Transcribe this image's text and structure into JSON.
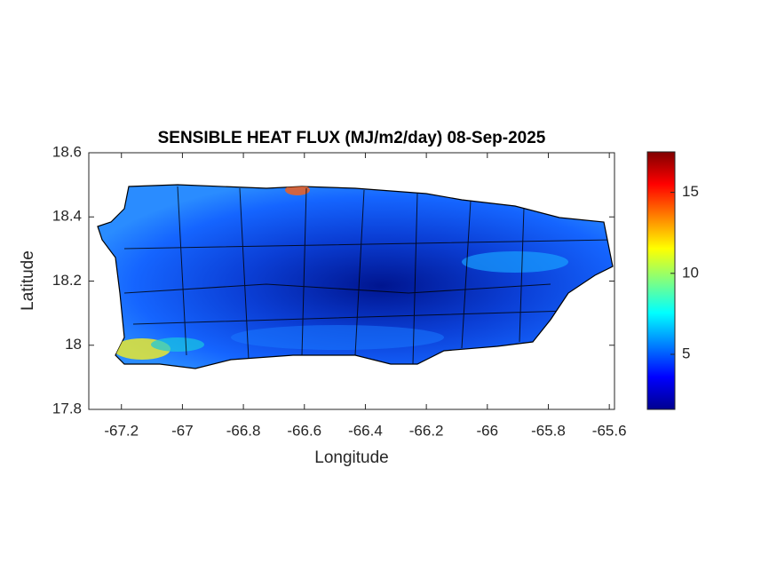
{
  "chart_data": {
    "type": "map",
    "title": "SENSIBLE HEAT FLUX (MJ/m2/day) 08-Sep-2025",
    "x_label": "Longitude",
    "y_label": "Latitude",
    "xlim": [
      -67.307,
      -65.583
    ],
    "xticks": [
      -67.2,
      -67,
      -66.8,
      -66.6,
      -66.4,
      -66.2,
      -66,
      -65.8,
      -65.6
    ],
    "ylim": [
      17.8,
      18.6
    ],
    "yticks": [
      17.8,
      18,
      18.2,
      18.4,
      18.6
    ],
    "colorbar": {
      "colormap": "jet",
      "clim": [
        1.6,
        17.5
      ],
      "ticks": [
        5,
        10,
        15
      ]
    }
  }
}
